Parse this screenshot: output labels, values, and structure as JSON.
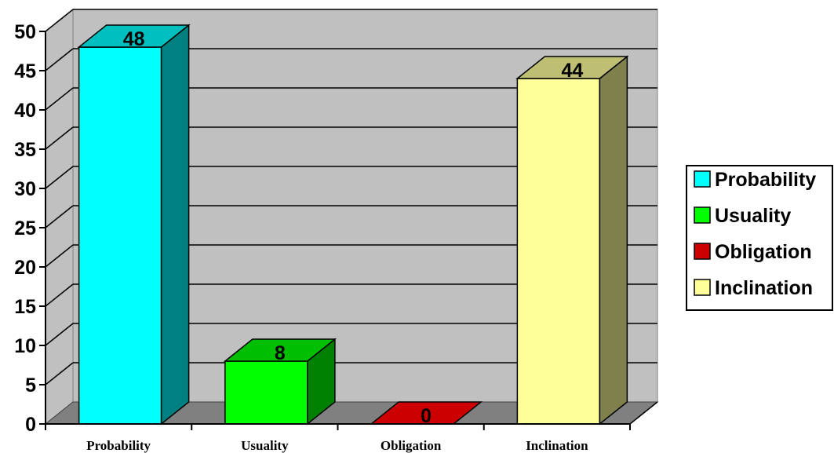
{
  "chart_data": {
    "type": "bar",
    "title": "",
    "xlabel": "",
    "ylabel": "",
    "categories": [
      "Probability",
      "Usuality",
      "Obligation",
      "Inclination"
    ],
    "values": [
      48,
      8,
      0,
      44
    ],
    "data_labels": [
      "48",
      "8",
      "0",
      "44"
    ],
    "ylim": [
      0,
      50
    ],
    "y_ticks": [
      "0",
      "5",
      "10",
      "15",
      "20",
      "25",
      "30",
      "35",
      "40",
      "45",
      "50"
    ],
    "grid": true,
    "style": "3d-columns",
    "colors": [
      "#00FFFF",
      "#00FF00",
      "#CC0000",
      "#FFFF99"
    ],
    "legend": {
      "position": "right",
      "entries": [
        "Probability",
        "Usuality",
        "Obligation",
        "Inclination"
      ]
    }
  }
}
